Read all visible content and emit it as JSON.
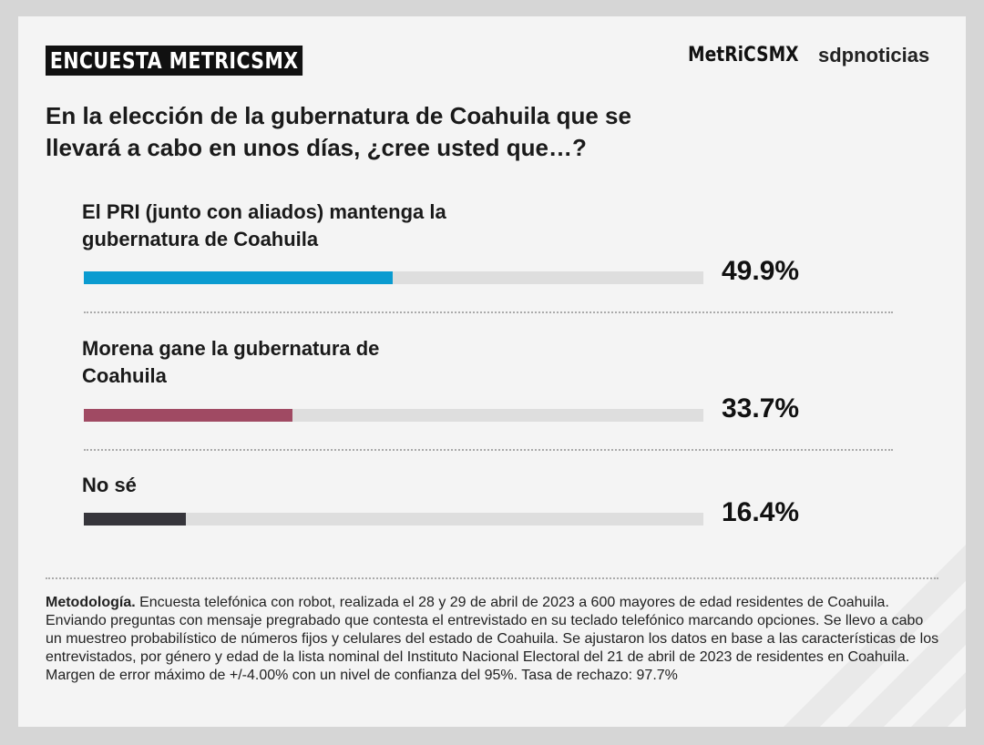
{
  "chart_data": {
    "type": "bar",
    "badge": "ENCUESTA METRICSMX",
    "logo_left": "MetRiCSMX",
    "logo_right": "sdpnoticias",
    "title": "En la elección de la gubernatura de Coahuila que se llevará a cabo en unos días, ¿cree usted que…?",
    "categories": [
      "El PRI (junto con aliados) mantenga la gubernatura de Coahuila",
      "Morena gane la gubernatura de Coahuila",
      "No sé"
    ],
    "values": [
      49.9,
      33.7,
      16.4
    ],
    "value_labels": [
      "49.9%",
      "33.7%",
      "16.4%"
    ],
    "colors": [
      "#0a9bd0",
      "#a04a63",
      "#36353b"
    ],
    "track_color": "#dedede",
    "xlim": [
      0,
      100
    ],
    "note_label": "Metodología.",
    "note": "Encuesta telefónica con robot, realizada el 28 y 29 de abril de 2023 a 600 mayores de edad residentes de Coahuila. Enviando preguntas con mensaje pregrabado que contesta el entrevistado en su teclado telefónico marcando opciones. Se llevo a cabo un muestreo probabilístico de números fijos y celulares del estado de Coahuila. Se ajustaron los datos en base a las características de los entrevistados, por género y edad de la lista nominal del Instituto Nacional Electoral del 21 de abril de 2023 de residentes en Coahuila. Margen de error máximo de +/-4.00% con un nivel de confianza del 95%. Tasa de rechazo: 97.7%"
  }
}
